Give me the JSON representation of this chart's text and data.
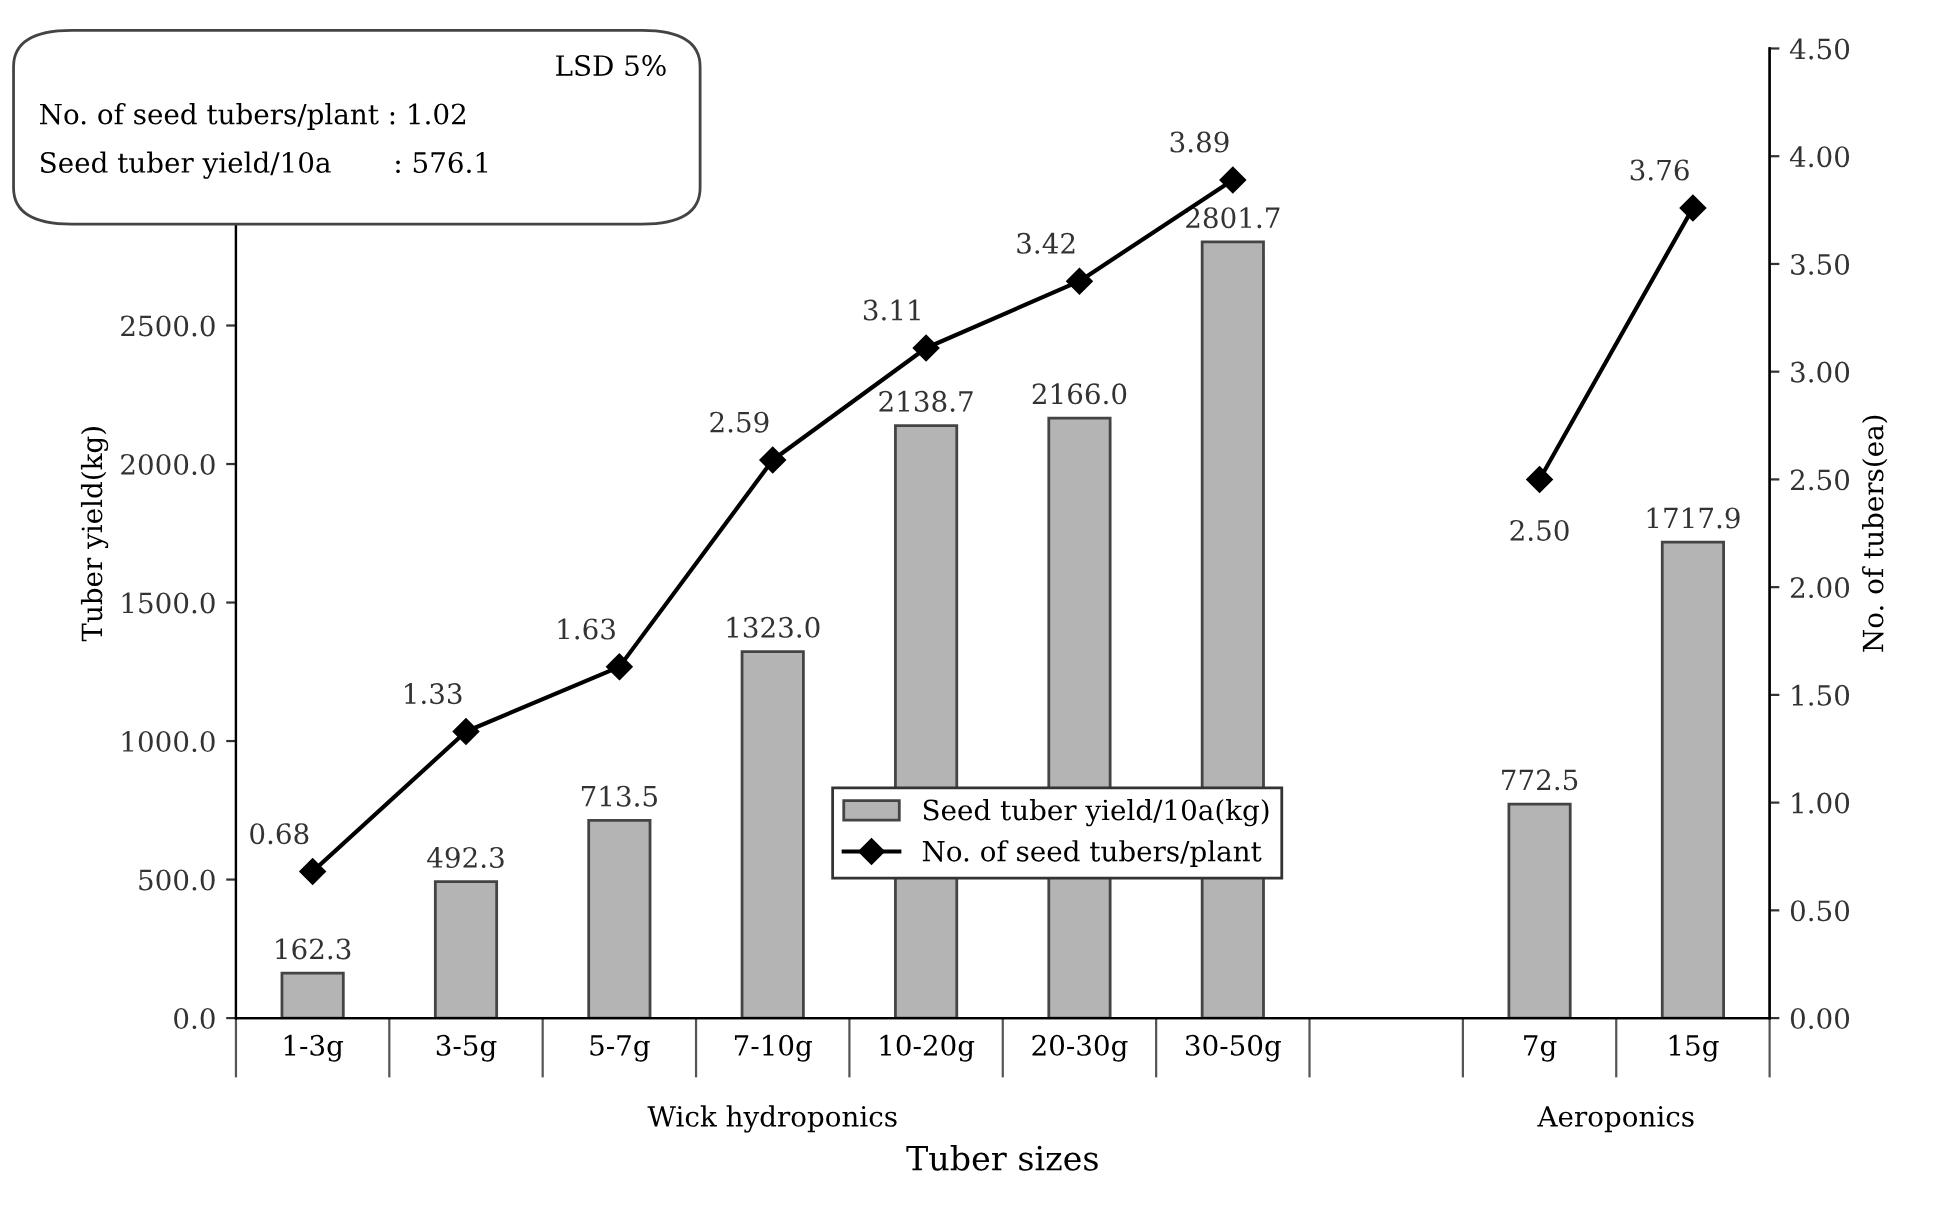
{
  "chart_data": {
    "type": "bar",
    "xlabel": "Tuber sizes",
    "ylabel": "Tuber yield(kg)",
    "y2label": "No. of tubers(ea)",
    "categories": [
      "1-3g",
      "3-5g",
      "5-7g",
      "7-10g",
      "10-20g",
      "20-30g",
      "30-50g",
      null,
      "7g",
      "15g"
    ],
    "series": [
      {
        "name": "Seed tuber yield/10a(kg)",
        "type": "bar",
        "color": "#b4b4b4",
        "values": [
          162.3,
          492.3,
          713.5,
          1323.0,
          2138.7,
          2166.0,
          2801.7,
          null,
          772.5,
          1717.9
        ],
        "value_labels": [
          "162.3",
          "492.3",
          "713.5",
          "1323.0",
          "2138.7",
          "2166.0",
          "2801.7",
          null,
          "772.5",
          "1717.9"
        ]
      },
      {
        "name": "No. of seed tubers/plant",
        "type": "line",
        "axis": "y2",
        "color": "#000000",
        "marker": "diamond",
        "values": [
          0.68,
          1.33,
          1.63,
          2.59,
          3.11,
          3.42,
          3.89,
          null,
          2.5,
          3.76
        ],
        "value_labels": [
          "0.68",
          "1.33",
          "1.63",
          "2.59",
          "3.11",
          "3.42",
          "3.89",
          null,
          "2.50",
          "3.76"
        ]
      }
    ],
    "ylim": [
      0,
      3500
    ],
    "yticks": [
      {
        "value": 0,
        "label": "0.0"
      },
      {
        "value": 500,
        "label": "500.0"
      },
      {
        "value": 1000,
        "label": "1000.0"
      },
      {
        "value": 1500,
        "label": "1500.0"
      },
      {
        "value": 2000,
        "label": "2000.0"
      },
      {
        "value": 2500,
        "label": "2500.0"
      }
    ],
    "y2lim": [
      0,
      4.5
    ],
    "y2ticks": [
      {
        "value": 0,
        "label": "0.00"
      },
      {
        "value": 0.5,
        "label": "0.50"
      },
      {
        "value": 1,
        "label": "1.00"
      },
      {
        "value": 1.5,
        "label": "1.50"
      },
      {
        "value": 2,
        "label": "2.00"
      },
      {
        "value": 2.5,
        "label": "2.50"
      },
      {
        "value": 3,
        "label": "3.00"
      },
      {
        "value": 3.5,
        "label": "3.50"
      },
      {
        "value": 4,
        "label": "4.00"
      },
      {
        "value": 4.5,
        "label": "4.50"
      }
    ],
    "legend": "bottom",
    "grid": false,
    "annotations": [
      "LSD 5%",
      "No. of seed tubers/plant : 1.02",
      "Seed tuber yield/10a       : 576.1",
      "Wick hydroponics",
      "Aeroponics"
    ]
  }
}
